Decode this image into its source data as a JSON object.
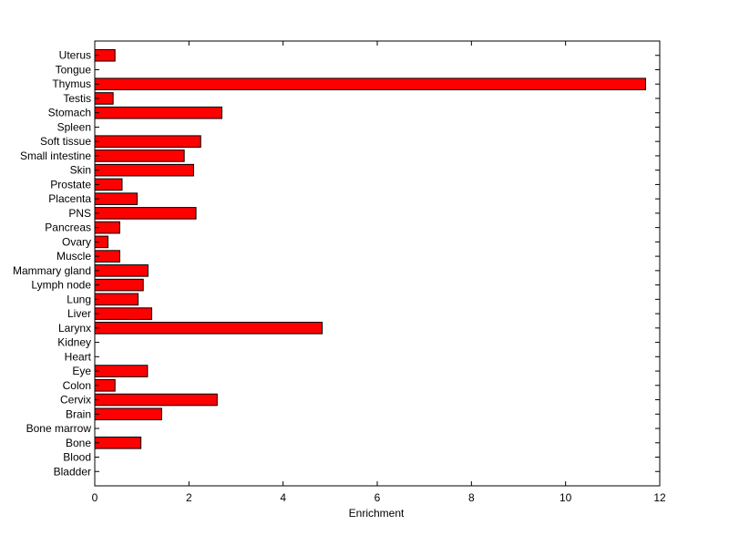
{
  "chart_data": {
    "type": "bar",
    "orientation": "horizontal",
    "title": "",
    "xlabel": "Enrichment",
    "ylabel": "",
    "xlim": [
      0,
      12
    ],
    "xticks": [
      0,
      2,
      4,
      6,
      8,
      10,
      12
    ],
    "grid": false,
    "legend": "none",
    "bar_color": "#ff0000",
    "edge_color": "#000000",
    "categories": [
      "Bladder",
      "Blood",
      "Bone",
      "Bone marrow",
      "Brain",
      "Cervix",
      "Colon",
      "Eye",
      "Heart",
      "Kidney",
      "Larynx",
      "Liver",
      "Lung",
      "Lymph node",
      "Mammary gland",
      "Muscle",
      "Ovary",
      "Pancreas",
      "PNS",
      "Placenta",
      "Prostate",
      "Skin",
      "Small intestine",
      "Soft tissue",
      "Spleen",
      "Stomach",
      "Testis",
      "Thymus",
      "Tongue",
      "Uterus"
    ],
    "values": [
      0,
      0,
      0.98,
      0,
      1.42,
      2.6,
      0.43,
      1.12,
      0,
      0,
      4.83,
      1.21,
      0.92,
      1.03,
      1.13,
      0.53,
      0.28,
      0.53,
      2.15,
      0.9,
      0.58,
      2.1,
      1.9,
      2.25,
      0,
      2.7,
      0.39,
      11.7,
      0,
      0.43
    ]
  }
}
